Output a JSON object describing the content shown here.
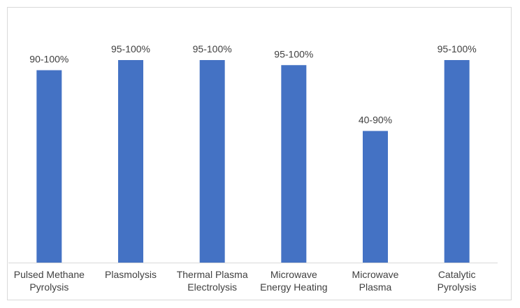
{
  "chart_data": {
    "type": "bar",
    "title": "",
    "xlabel": "",
    "ylabel": "",
    "categories": [
      [
        "Pulsed Methane",
        "Pyrolysis"
      ],
      [
        "Plasmolysis"
      ],
      [
        "Thermal Plasma",
        "Electrolysis"
      ],
      [
        "Microwave",
        "Energy Heating"
      ],
      [
        "Microwave",
        "Plasma"
      ],
      [
        "Catalytic",
        "Pyrolysis"
      ]
    ],
    "values": [
      95,
      100,
      100,
      97.5,
      65,
      100
    ],
    "data_labels": [
      "90-100%",
      "95-100%",
      "95-100%",
      "95-100%",
      "40-90%",
      "95-100%"
    ],
    "ylim": [
      0,
      100
    ],
    "grid": false,
    "legend": "none",
    "bar_color": "#4472C4",
    "axis_color": "#d9d9d9"
  }
}
